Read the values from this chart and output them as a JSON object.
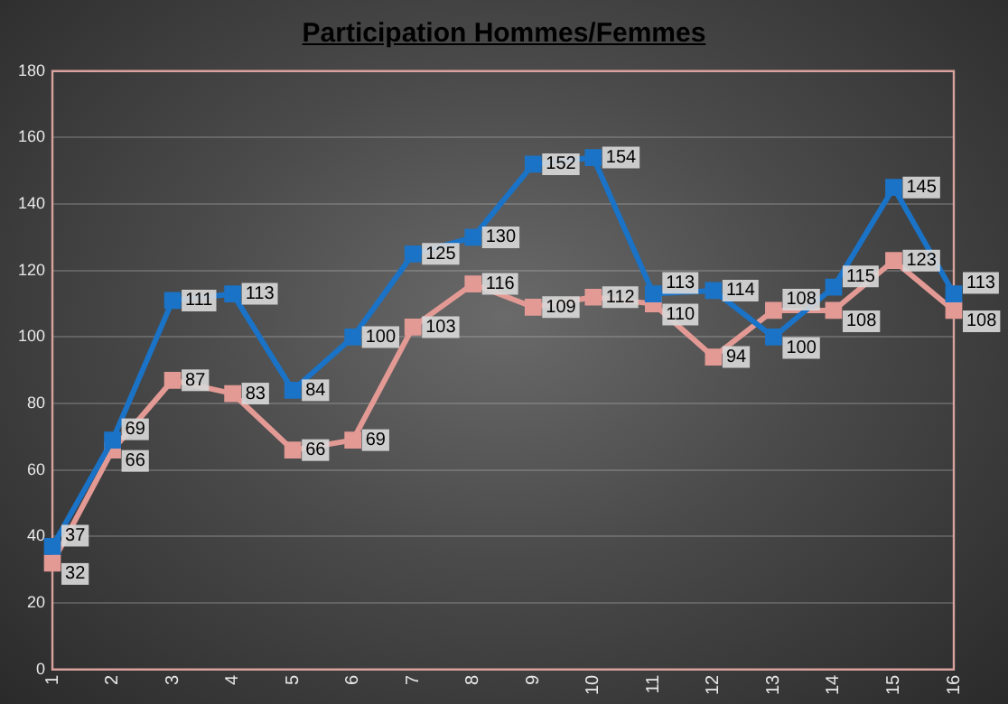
{
  "chart_data": {
    "type": "line",
    "title": "Participation Hommes/Femmes",
    "categories": [
      "1",
      "2",
      "3",
      "4",
      "5",
      "6",
      "7",
      "8",
      "9",
      "10",
      "11",
      "12",
      "13",
      "14",
      "15",
      "16"
    ],
    "series": [
      {
        "color": "#1a73c6",
        "values": [
          37,
          69,
          111,
          113,
          84,
          100,
          125,
          130,
          152,
          154,
          113,
          114,
          100,
          115,
          145,
          113
        ]
      },
      {
        "color": "#e39a95",
        "values": [
          32,
          66,
          87,
          83,
          66,
          69,
          103,
          116,
          109,
          112,
          110,
          94,
          108,
          108,
          123,
          108
        ]
      }
    ],
    "ylim": [
      0,
      180
    ],
    "yticks": [
      0,
      20,
      40,
      60,
      80,
      100,
      120,
      140,
      160,
      180
    ],
    "grid": "y",
    "legend": false,
    "marker": "square",
    "line_style": "solid",
    "data_labels": true
  }
}
